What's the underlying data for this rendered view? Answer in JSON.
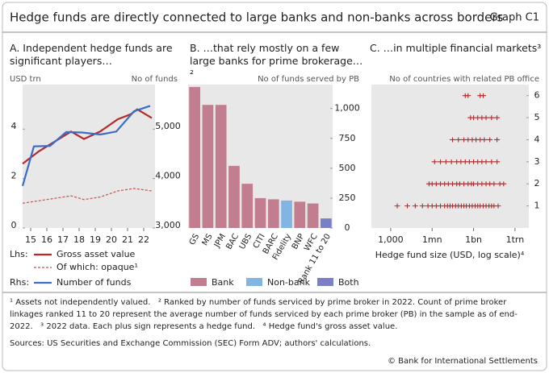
{
  "page": {
    "title": "Hedge funds are directly connected to large banks and non-banks across borders",
    "graph_id": "Graph C1",
    "footnotes": "¹ Assets not independently valued.   ² Ranked by number of funds serviced by prime broker in 2022. Count of prime broker linkages ranked 11 to 20 represent the average number of funds serviced by each prime broker (PB) in the sample as of end-2022.   ³ 2022 data. Each plus sign represents a hedge fund.   ⁴ Hedge fund's gross asset value.",
    "sources": "Sources: US Securities and Exchange Commission (SEC) Form ADV; authors' calculations.",
    "copyright": "© Bank for International Settlements"
  },
  "chart_data": [
    {
      "type": "line",
      "title": "A. Independent hedge funds are significant players…",
      "ylabel": "USD trn",
      "y2label": "No of funds",
      "xlim": [
        2014.5,
        2022.7
      ],
      "xticks": [
        {
          "value": 2015,
          "label": "15"
        },
        {
          "value": 2016,
          "label": "16"
        },
        {
          "value": 2017,
          "label": "17"
        },
        {
          "value": 2018,
          "label": "18"
        },
        {
          "value": 2019,
          "label": "19"
        },
        {
          "value": 2020,
          "label": "20"
        },
        {
          "value": 2021,
          "label": "21"
        },
        {
          "value": 2022,
          "label": "22"
        }
      ],
      "ylim": [
        0,
        5.8
      ],
      "yticks": [
        0,
        2,
        4
      ],
      "y2lim": [
        3000,
        5900
      ],
      "y2ticks": [
        {
          "value": 3000,
          "label": "3,000"
        },
        {
          "value": 4000,
          "label": "4,000"
        },
        {
          "value": 5000,
          "label": "5,000"
        }
      ],
      "legend_groups": {
        "lhs": "Lhs:",
        "rhs": "Rhs:"
      },
      "series": [
        {
          "name": "Gross asset value",
          "color": "#b22a2a",
          "x": [
            2014.5,
            2015.5,
            2016.5,
            2017.5,
            2018.3,
            2019.3,
            2020.4,
            2021.2,
            2021.6,
            2022.5
          ],
          "values": [
            2.6,
            3.1,
            3.5,
            3.9,
            3.6,
            3.9,
            4.4,
            4.6,
            4.8,
            4.45
          ]
        },
        {
          "name": "Of which: opaque¹",
          "color": "#c0504d",
          "style": "dashed",
          "x": [
            2014.5,
            2015.5,
            2016.5,
            2017.5,
            2018.3,
            2019.3,
            2020.4,
            2021.4,
            2022.5
          ],
          "values": [
            1.0,
            1.1,
            1.2,
            1.3,
            1.15,
            1.25,
            1.5,
            1.6,
            1.5
          ]
        },
        {
          "name": "Number of funds",
          "color": "#3b6cc6",
          "axis": "y2",
          "x": [
            2014.5,
            2015.2,
            2016.2,
            2017.2,
            2018.2,
            2019.3,
            2020.3,
            2021.4,
            2022.4
          ],
          "values": [
            3850,
            4650,
            4660,
            4940,
            4930,
            4890,
            4950,
            5360,
            5470
          ]
        }
      ]
    },
    {
      "type": "bar",
      "title": "B. …that rely mostly on a few large banks for prime brokerage…²",
      "ylabel": "No of funds served by PB",
      "categories": [
        "GS",
        "MS",
        "JPM",
        "BAC",
        "UBS",
        "CITI",
        "BARC",
        "Fidelity",
        "BNP",
        "WFC",
        "Rank 11 to 20"
      ],
      "ylim": [
        0,
        1200
      ],
      "yticks": [
        0,
        250,
        500,
        750,
        {
          "value": 1000,
          "label": "1,000"
        }
      ],
      "series": [
        {
          "name": "Bank",
          "color": "#c27d8e",
          "values": [
            1180,
            1030,
            1030,
            520,
            370,
            250,
            240,
            null,
            220,
            205,
            null
          ]
        },
        {
          "name": "Non-bank",
          "color": "#82b5e3",
          "values": [
            null,
            null,
            null,
            null,
            null,
            null,
            null,
            230,
            null,
            null,
            null
          ]
        },
        {
          "name": "Both",
          "color": "#7a7fc6",
          "values": [
            null,
            null,
            null,
            null,
            null,
            null,
            null,
            null,
            null,
            null,
            80
          ]
        }
      ]
    },
    {
      "type": "scatter",
      "title": "C. …in multiple financial markets³",
      "ylabel": "No of countries with related PB office",
      "xlabel": "Hedge fund size (USD, log scale)⁴",
      "xscale": "log",
      "xlim": [
        40,
        10000000000000.0
      ],
      "xticks": [
        {
          "value": 1000,
          "label": "1,000"
        },
        {
          "value": 1000000,
          "label": "1mn"
        },
        {
          "value": 1000000000,
          "label": "1bn"
        },
        {
          "value": 1000000000000,
          "label": "1trn"
        }
      ],
      "ylim": [
        0,
        6.5
      ],
      "yticks": [
        1,
        2,
        3,
        4,
        5,
        6
      ],
      "marker": "plus",
      "series": [
        {
          "color": "#b22a2a",
          "x": [
            3000.0,
            16000.0,
            60000.0,
            200000.0,
            500000.0,
            1000000.0,
            2000000.0,
            4000000.0,
            8000000.0,
            13000000.0,
            20000000.0,
            30000000.0,
            50000000.0,
            80000000.0,
            130000000.0,
            200000000.0,
            300000000.0,
            500000000.0,
            800000000.0,
            1300000000.0,
            2000000000.0,
            3000000000.0,
            5000000000.0,
            8000000000.0,
            13000000000.0,
            20000000000.0,
            30000000000.0,
            60000000000.0,
            600000.0,
            1000000.0,
            2000000.0,
            4000000.0,
            8000000.0,
            15000000.0,
            30000000.0,
            60000000.0,
            100000000.0,
            200000000.0,
            400000000.0,
            700000000.0,
            1000000000.0,
            2000000000.0,
            4000000000.0,
            8000000000.0,
            15000000000.0,
            30000000000.0,
            80000000000.0,
            150000000000.0,
            1500000.0,
            4000000.0,
            10000000.0,
            25000000.0,
            60000000.0,
            120000000.0,
            250000000.0,
            500000000.0,
            1000000000.0,
            2000000000.0,
            4000000000.0,
            8000000000.0,
            20000000000.0,
            50000000000.0,
            30000000.0,
            80000000.0,
            200000000.0,
            400000000.0,
            800000000.0,
            1500000000.0,
            3000000000.0,
            6000000000.0,
            15000000000.0,
            50000000000.0,
            600000000.0,
            1000000000.0,
            2000000000.0,
            4000000000.0,
            8000000000.0,
            20000000000.0,
            50000000000.0,
            250000000.0,
            400000000.0,
            3000000000.0,
            5000000000.0
          ],
          "values": [
            1,
            1,
            1,
            1,
            1,
            1,
            1,
            1,
            1,
            1,
            1,
            1,
            1,
            1,
            1,
            1,
            1,
            1,
            1,
            1,
            1,
            1,
            1,
            1,
            1,
            1,
            1,
            1,
            2,
            2,
            2,
            2,
            2,
            2,
            2,
            2,
            2,
            2,
            2,
            2,
            2,
            2,
            2,
            2,
            2,
            2,
            2,
            2,
            3,
            3,
            3,
            3,
            3,
            3,
            3,
            3,
            3,
            3,
            3,
            3,
            3,
            3,
            4,
            4,
            4,
            4,
            4,
            4,
            4,
            4,
            4,
            4,
            5,
            5,
            5,
            5,
            5,
            5,
            5,
            6,
            6,
            6,
            6
          ]
        }
      ]
    }
  ]
}
